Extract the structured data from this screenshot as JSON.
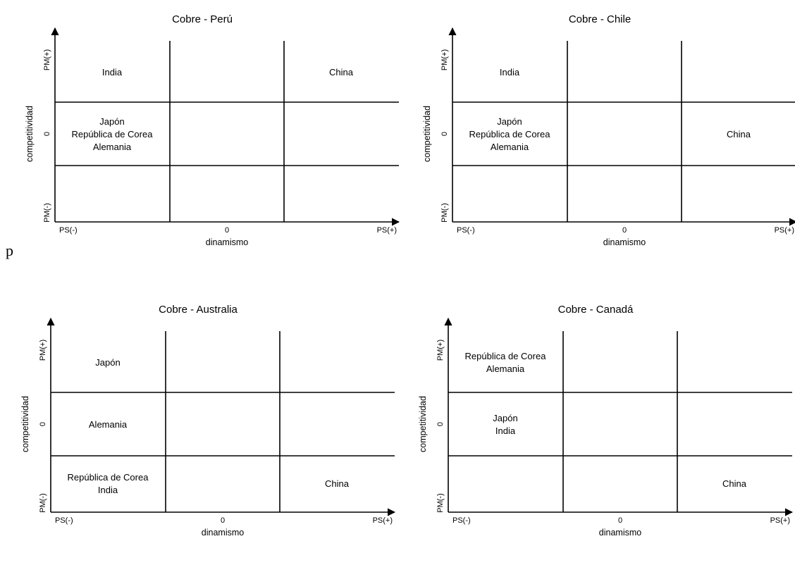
{
  "stray_text": "p",
  "chart_data": [
    {
      "type": "quadrant-matrix",
      "title": "Cobre - Perú",
      "xlabel": "dinamismo",
      "ylabel": "competitividad",
      "x_ticks": [
        "PS(-)",
        "0",
        "PS(+)"
      ],
      "y_ticks": [
        "PM(+)",
        "0",
        "PM(-)"
      ],
      "cells": [
        {
          "row": 0,
          "col": 0,
          "lines": [
            "India"
          ]
        },
        {
          "row": 0,
          "col": 2,
          "lines": [
            "China"
          ]
        },
        {
          "row": 1,
          "col": 0,
          "lines": [
            "Japón",
            "República de Corea",
            "Alemania"
          ]
        }
      ]
    },
    {
      "type": "quadrant-matrix",
      "title": "Cobre - Chile",
      "xlabel": "dinamismo",
      "ylabel": "competitividad",
      "x_ticks": [
        "PS(-)",
        "0",
        "PS(+)"
      ],
      "y_ticks": [
        "PM(+)",
        "0",
        "PM(-)"
      ],
      "cells": [
        {
          "row": 0,
          "col": 0,
          "lines": [
            "India"
          ]
        },
        {
          "row": 1,
          "col": 0,
          "lines": [
            "Japón",
            "República de Corea",
            "Alemania"
          ]
        },
        {
          "row": 1,
          "col": 2,
          "lines": [
            "China"
          ]
        }
      ]
    },
    {
      "type": "quadrant-matrix",
      "title": "Cobre - Australia",
      "xlabel": "dinamismo",
      "ylabel": "competitividad",
      "x_ticks": [
        "PS(-)",
        "0",
        "PS(+)"
      ],
      "y_ticks": [
        "PM(+)",
        "0",
        "PM(-)"
      ],
      "cells": [
        {
          "row": 0,
          "col": 0,
          "lines": [
            "Japón"
          ]
        },
        {
          "row": 1,
          "col": 0,
          "lines": [
            "Alemania"
          ]
        },
        {
          "row": 2,
          "col": 0,
          "lines": [
            "República de Corea",
            "India"
          ]
        },
        {
          "row": 2,
          "col": 2,
          "lines": [
            "China"
          ]
        }
      ]
    },
    {
      "type": "quadrant-matrix",
      "title": "Cobre - Canadá",
      "xlabel": "dinamismo",
      "ylabel": "competitividad",
      "x_ticks": [
        "PS(-)",
        "0",
        "PS(+)"
      ],
      "y_ticks": [
        "PM(+)",
        "0",
        "PM(-)"
      ],
      "cells": [
        {
          "row": 0,
          "col": 0,
          "lines": [
            "República de Corea",
            "Alemania"
          ]
        },
        {
          "row": 1,
          "col": 0,
          "lines": [
            "Japón",
            "India"
          ]
        },
        {
          "row": 2,
          "col": 2,
          "lines": [
            "China"
          ]
        }
      ]
    }
  ]
}
